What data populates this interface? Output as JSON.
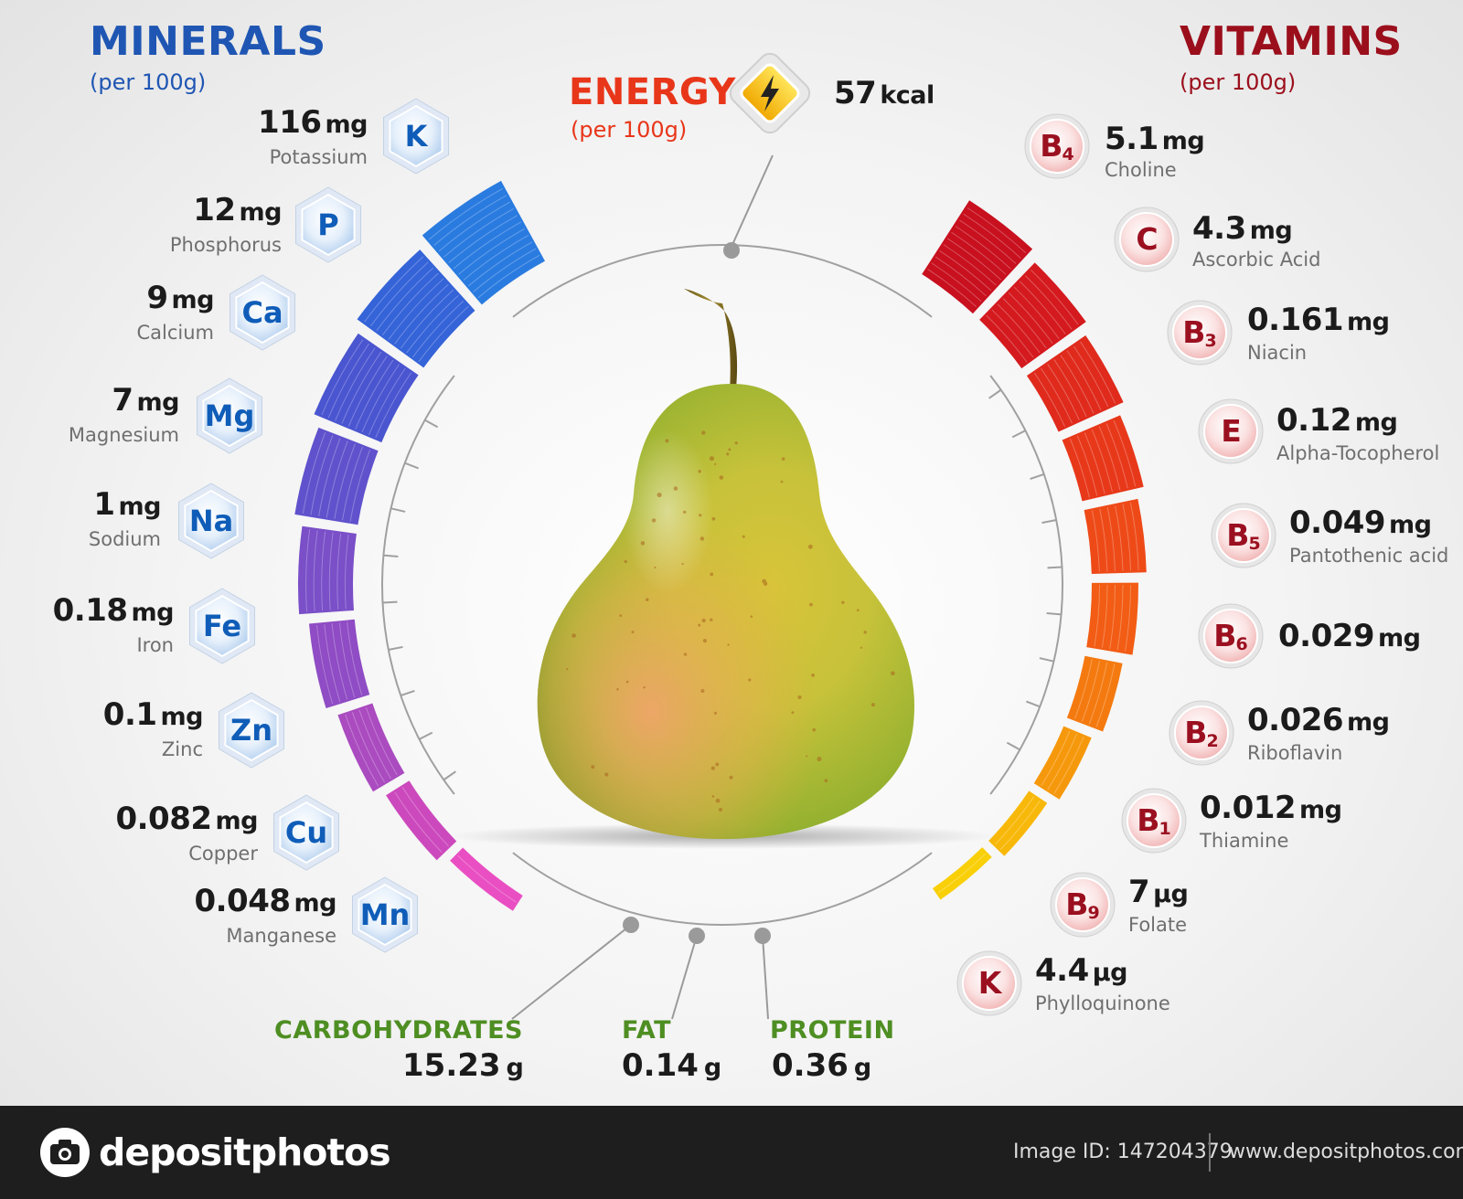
{
  "minerals": {
    "title": "MINERALS",
    "subtitle": "(per 100g)",
    "title_color": "#1f56b3",
    "items": [
      {
        "value": "116",
        "unit": "mg",
        "name": "Potassium",
        "symbol": "K"
      },
      {
        "value": "12",
        "unit": "mg",
        "name": "Phosphorus",
        "symbol": "P"
      },
      {
        "value": "9",
        "unit": "mg",
        "name": "Calcium",
        "symbol": "Ca"
      },
      {
        "value": "7",
        "unit": "mg",
        "name": "Magnesium",
        "symbol": "Mg"
      },
      {
        "value": "1",
        "unit": "mg",
        "name": "Sodium",
        "symbol": "Na"
      },
      {
        "value": "0.18",
        "unit": "mg",
        "name": "Iron",
        "symbol": "Fe"
      },
      {
        "value": "0.1",
        "unit": "mg",
        "name": "Zinc",
        "symbol": "Zn"
      },
      {
        "value": "0.082",
        "unit": "mg",
        "name": "Copper",
        "symbol": "Cu"
      },
      {
        "value": "0.048",
        "unit": "mg",
        "name": "Manganese",
        "symbol": "Mn"
      }
    ],
    "arc_colors": [
      "#2a7be0",
      "#3563d8",
      "#4a55d0",
      "#6052cc",
      "#7a4fc8",
      "#8f4cc4",
      "#aa4bc0",
      "#cc49bd",
      "#e94fc2"
    ]
  },
  "vitamins": {
    "title": "VITAMINS",
    "subtitle": "(per 100g)",
    "title_color": "#9b0f1c",
    "items": [
      {
        "value": "5.1",
        "unit": "mg",
        "name": "Choline",
        "symbol": "B",
        "sub": "4"
      },
      {
        "value": "4.3",
        "unit": "mg",
        "name": "Ascorbic Acid",
        "symbol": "C",
        "sub": ""
      },
      {
        "value": "0.161",
        "unit": "mg",
        "name": "Niacin",
        "symbol": "B",
        "sub": "3"
      },
      {
        "value": "0.12",
        "unit": "mg",
        "name": "Alpha-Tocopherol",
        "symbol": "E",
        "sub": ""
      },
      {
        "value": "0.049",
        "unit": "mg",
        "name": "Pantothenic acid",
        "symbol": "B",
        "sub": "5"
      },
      {
        "value": "0.029",
        "unit": "mg",
        "name": "",
        "symbol": "B",
        "sub": "6"
      },
      {
        "value": "0.026",
        "unit": "mg",
        "name": "Riboflavin",
        "symbol": "B",
        "sub": "2"
      },
      {
        "value": "0.012",
        "unit": "mg",
        "name": "Thiamine",
        "symbol": "B",
        "sub": "1"
      },
      {
        "value": "7",
        "unit": "µg",
        "name": "Folate",
        "symbol": "B",
        "sub": "9"
      },
      {
        "value": "4.4",
        "unit": "µg",
        "name": "Phylloquinone",
        "symbol": "K",
        "sub": ""
      }
    ],
    "arc_colors": [
      "#c8101e",
      "#d41a1e",
      "#df2a1c",
      "#e8381a",
      "#ee4a18",
      "#f25c14",
      "#f47a10",
      "#f6980c",
      "#f8b80a",
      "#f9cf08"
    ]
  },
  "energy": {
    "label": "ENERGY",
    "subtitle": "(per 100g)",
    "value": "57",
    "unit": "kcal",
    "label_color": "#e8361a",
    "icon": "lightning-icon"
  },
  "macros": [
    {
      "label": "CARBOHYDRATES",
      "value": "15.23",
      "unit": "g"
    },
    {
      "label": "FAT",
      "value": "0.14",
      "unit": "g"
    },
    {
      "label": "PROTEIN",
      "value": "0.36",
      "unit": "g"
    }
  ],
  "macro_label_color": "#4e8e22",
  "footer": {
    "brand": "depositphotos",
    "image_id": "Image ID: 147204379",
    "website": "www.depositphotos.com"
  }
}
